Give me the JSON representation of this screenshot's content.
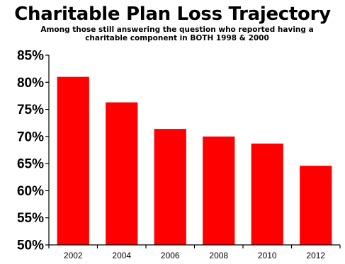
{
  "chart_data": {
    "type": "bar",
    "title": "Charitable Plan Loss Trajectory",
    "subtitle": "Among those still answering the question who reported having a charitable component in BOTH 1998 & 2000",
    "categories": [
      "2002",
      "2004",
      "2006",
      "2008",
      "2010",
      "2012"
    ],
    "values": [
      81.0,
      76.3,
      71.4,
      70.0,
      68.7,
      64.6
    ],
    "ylim": [
      50,
      85
    ],
    "yticks": [
      50,
      55,
      60,
      65,
      70,
      75,
      80,
      85
    ],
    "ytick_labels": [
      "50%",
      "55%",
      "60%",
      "65%",
      "70%",
      "75%",
      "80%",
      "85%"
    ],
    "xlabel": "",
    "ylabel": "",
    "grid": false,
    "bar_color": "#ff0000"
  }
}
